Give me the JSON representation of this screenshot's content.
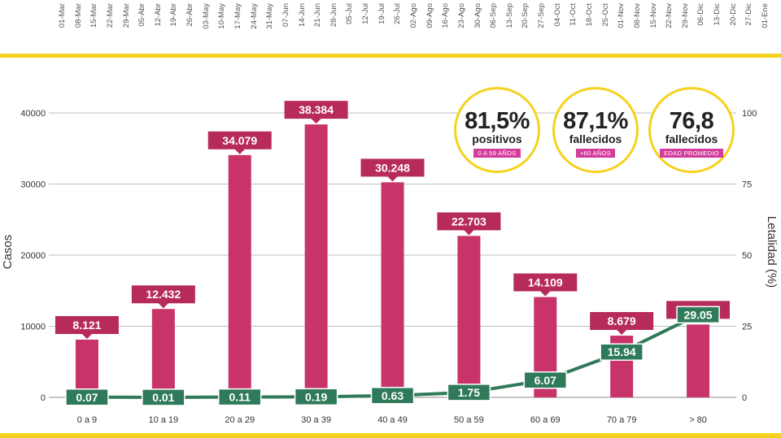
{
  "timeline": {
    "dates": [
      "01-Mar",
      "08-Mar",
      "15-Mar",
      "22-Mar",
      "29-Mar",
      "05-Abr",
      "12-Abr",
      "19-Abr",
      "26-Abr",
      "03-May",
      "10-May",
      "17-May",
      "24-May",
      "31-May",
      "07-Jun",
      "14-Jun",
      "21-Jun",
      "28-Jun",
      "05-Jul",
      "12-Jul",
      "19-Jul",
      "26-Jul",
      "02-Ago",
      "09-Ago",
      "16-Ago",
      "23-Ago",
      "30-Ago",
      "06-Sep",
      "13-Sep",
      "20-Sep",
      "27-Sep",
      "04-Oct",
      "11-Oct",
      "18-Oct",
      "25-Oct",
      "01-Nov",
      "08-Nov",
      "15-Nov",
      "22-Nov",
      "29-Nov",
      "06-Dic",
      "13-Dic",
      "20-Dic",
      "27-Dic",
      "01-Ene"
    ]
  },
  "stats": [
    {
      "value": "81,5%",
      "label": "positivos",
      "badge": "0 A 59 AÑOS"
    },
    {
      "value": "87,1%",
      "label": "fallecidos",
      "badge": "+60 AÑOS"
    },
    {
      "value": "76,8",
      "label": "fallecidos",
      "badge": "EDAD PROMEDIO"
    }
  ],
  "colors": {
    "bar": "#c8336a",
    "label_box": "#b62b5c",
    "line": "#2f7a5a",
    "line_label": "#2f7a5a",
    "accent": "#f5d21f",
    "badge": "#d43c9b"
  },
  "chart_data": {
    "type": "bar",
    "categories": [
      "0 a 9",
      "10 a 19",
      "20 a 29",
      "30 a 39",
      "40 a 49",
      "50 a 59",
      "60 a 69",
      "70 a 79",
      "> 80"
    ],
    "series": [
      {
        "axis": "left",
        "type": "bar",
        "values": [
          8121,
          12432,
          34079,
          38384,
          30248,
          22703,
          14109,
          8679,
          10244
        ],
        "labels": [
          "8.121",
          "12.432",
          "34.079",
          "38.384",
          "30.248",
          "22.703",
          "14.109",
          "8.679",
          "10.244"
        ]
      },
      {
        "axis": "right",
        "type": "line",
        "values": [
          0.07,
          0.01,
          0.11,
          0.19,
          0.63,
          1.75,
          6.07,
          15.94,
          29.05
        ],
        "labels": [
          "0.07",
          "0.01",
          "0.11",
          "0.19",
          "0.63",
          "1.75",
          "6.07",
          "15.94",
          "29.05"
        ]
      }
    ],
    "ylabel": "Casos",
    "y2label": "Letalidad (%)",
    "ylim": [
      0,
      45000
    ],
    "y2lim": [
      0,
      112.5
    ],
    "yticks": [
      0,
      10000,
      20000,
      30000,
      40000
    ],
    "y2ticks": [
      0,
      25,
      50,
      75,
      100
    ],
    "grid": true
  }
}
